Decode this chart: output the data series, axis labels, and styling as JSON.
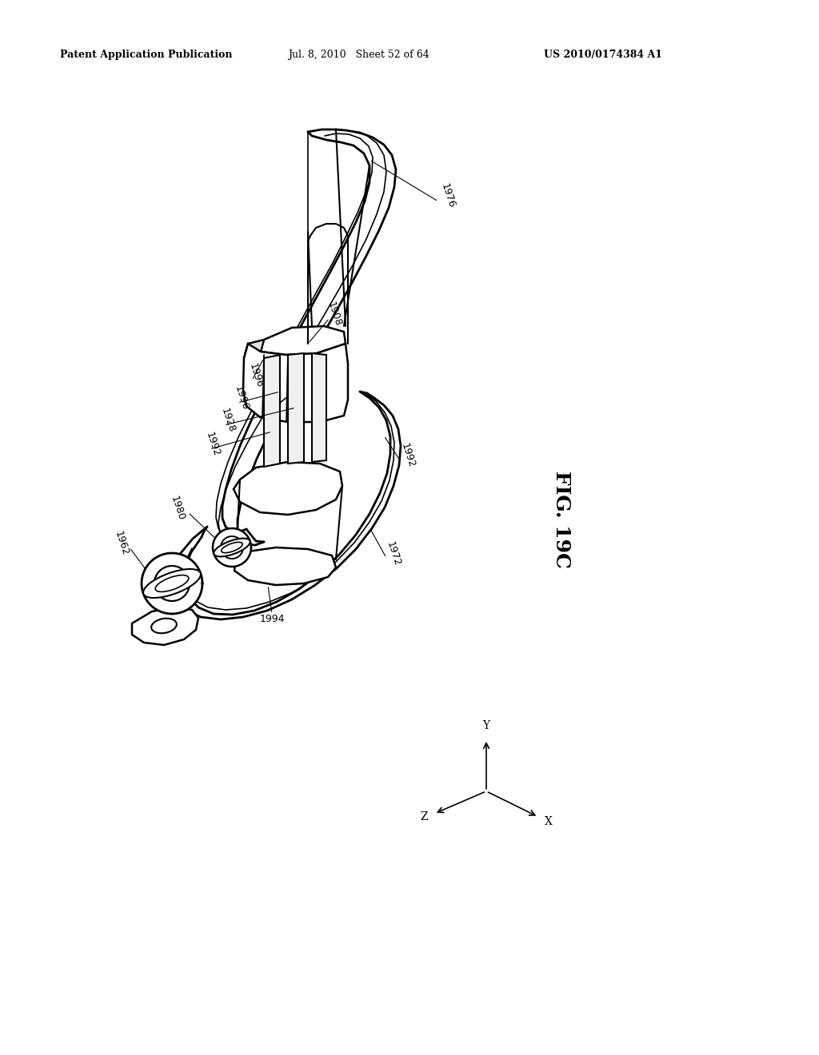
{
  "background_color": "#ffffff",
  "header_left": "Patent Application Publication",
  "header_center": "Jul. 8, 2010   Sheet 52 of 64",
  "header_right": "US 2010/0174384 A1",
  "fig_label": "FIG. 19C",
  "header_fontsize": 9,
  "label_fontsize": 9,
  "fig_label_fontsize": 18
}
